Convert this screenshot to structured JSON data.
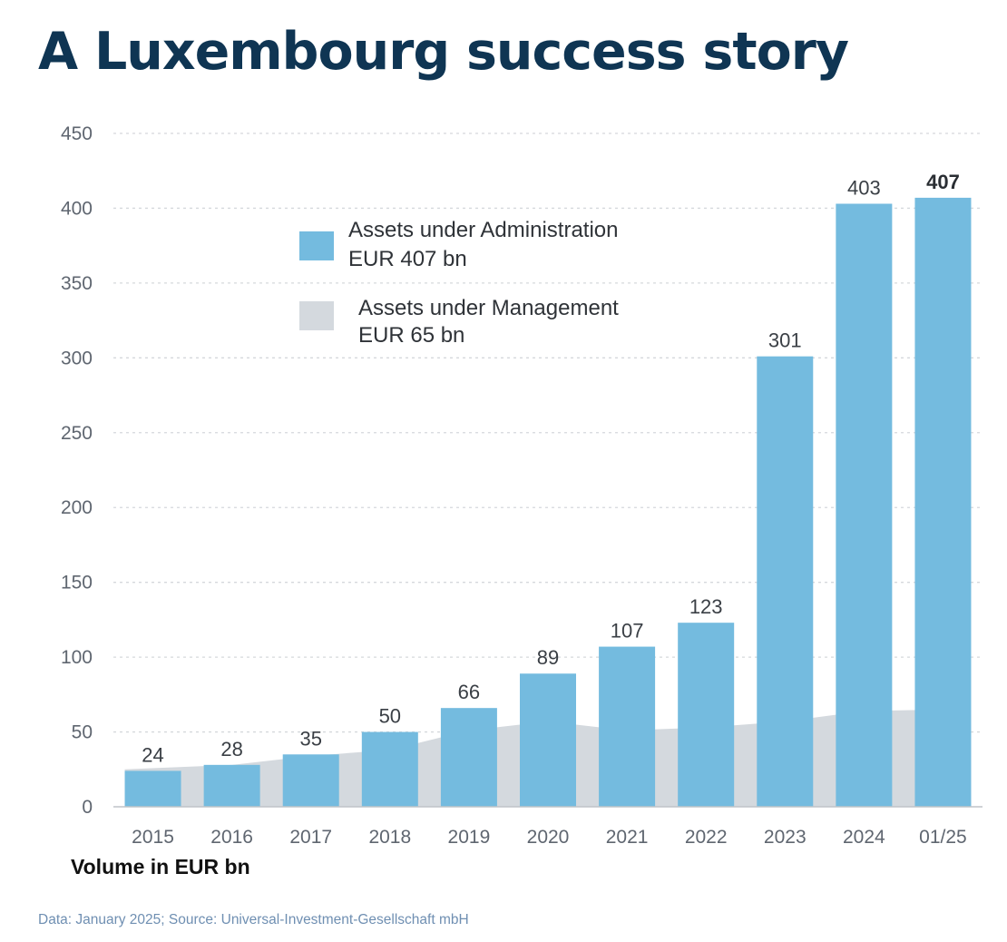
{
  "title": "A Luxembourg success story",
  "units_note": "Volume in EUR bn",
  "source_note": "Data: January 2025; Source: Universal-Investment-Gesellschaft mbH",
  "colors": {
    "aua": "#74bbdf",
    "aum": "#d4d9de",
    "title": "#0f3553",
    "grid": "#d5d8dc"
  },
  "chart_data": {
    "type": "bar",
    "categories": [
      "2015",
      "2016",
      "2017",
      "2018",
      "2019",
      "2020",
      "2021",
      "2022",
      "2023",
      "2024",
      "01/25"
    ],
    "ylim": [
      0,
      450
    ],
    "yticks": [
      0,
      50,
      100,
      150,
      200,
      250,
      300,
      350,
      400,
      450
    ],
    "grid": true,
    "legend_position": "top-left",
    "series": [
      {
        "name": "Assets under Administration",
        "legend_lines": [
          "Assets under Administration",
          "EUR 407 bn"
        ],
        "kind": "bar",
        "values": [
          24,
          28,
          35,
          50,
          66,
          89,
          107,
          123,
          301,
          403,
          407
        ],
        "labels": [
          "24",
          "28",
          "35",
          "50",
          "66",
          "89",
          "107",
          "123",
          "301",
          "403",
          "407"
        ]
      },
      {
        "name": "Assets under Management",
        "legend_lines": [
          "Assets under Management",
          "EUR 65 bn"
        ],
        "kind": "area",
        "values": [
          25,
          28,
          34,
          38,
          51,
          57,
          51,
          53,
          57,
          64,
          65
        ]
      }
    ]
  }
}
